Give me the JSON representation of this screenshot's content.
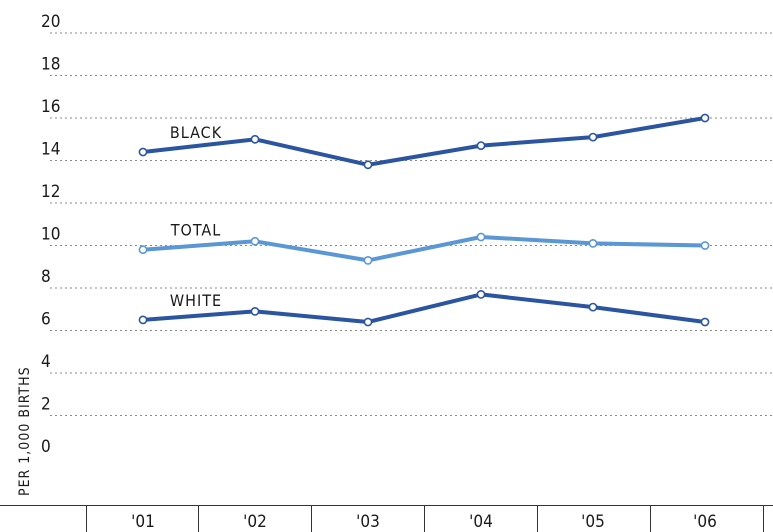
{
  "chart_data": {
    "type": "line",
    "categories": [
      "'01",
      "'02",
      "'03",
      "'04",
      "'05",
      "'06"
    ],
    "ylabel": "PER 1,000 BIRTHS",
    "ylim": [
      0,
      20
    ],
    "yticks": [
      0,
      2,
      4,
      6,
      8,
      10,
      12,
      14,
      16,
      18,
      20
    ],
    "grid": true,
    "series": [
      {
        "name": "BLACK",
        "values": [
          14.4,
          15.0,
          13.8,
          14.7,
          15.1,
          16.0
        ],
        "color": "#2b55a0"
      },
      {
        "name": "TOTAL",
        "values": [
          9.8,
          10.2,
          9.3,
          10.4,
          10.1,
          10.0
        ],
        "color": "#5b97d4"
      },
      {
        "name": "WHITE",
        "values": [
          6.5,
          6.9,
          6.4,
          7.7,
          7.1,
          6.4
        ],
        "color": "#2b55a0"
      }
    ]
  }
}
